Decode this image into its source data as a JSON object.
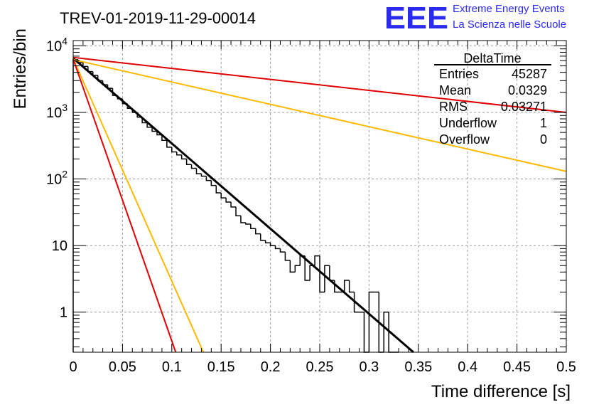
{
  "chart_data": {
    "type": "histogram",
    "title": "TREV-01-2019-11-29-00014",
    "xlabel": "Time difference [s]",
    "ylabel": "Entries/bin",
    "xlim": [
      0,
      0.5
    ],
    "ylim": [
      0.25,
      12000
    ],
    "yscale": "log",
    "grid": true,
    "x_ticks": [
      "0",
      "0.05",
      "0.1",
      "0.15",
      "0.2",
      "0.25",
      "0.3",
      "0.35",
      "0.4",
      "0.45",
      "0.5"
    ],
    "x_tick_values": [
      0,
      0.05,
      0.1,
      0.15,
      0.2,
      0.25,
      0.3,
      0.35,
      0.4,
      0.45,
      0.5
    ],
    "y_ticks": [
      {
        "value": 10000,
        "base": "10",
        "exp": "4"
      },
      {
        "value": 1000,
        "base": "10",
        "exp": "3"
      },
      {
        "value": 100,
        "base": "10",
        "exp": "2"
      },
      {
        "value": 10,
        "base": "10",
        "exp": ""
      },
      {
        "value": 1,
        "base": "1",
        "exp": ""
      }
    ],
    "histogram": {
      "bin_width": 0.005,
      "color": "#000000",
      "counts": [
        6200,
        5600,
        4900,
        4100,
        3600,
        3000,
        2600,
        2300,
        1800,
        1600,
        1350,
        1150,
        1000,
        850,
        700,
        600,
        520,
        460,
        380,
        300,
        255,
        230,
        200,
        165,
        145,
        120,
        110,
        95,
        80,
        62,
        52,
        45,
        38,
        28,
        22,
        21,
        18,
        15,
        12,
        11,
        10,
        9,
        8,
        6,
        4,
        5,
        7,
        3,
        5,
        7,
        2,
        5,
        3,
        2,
        2,
        3,
        2,
        1,
        1,
        0,
        2,
        2,
        0,
        1,
        0,
        0
      ]
    },
    "fit_lines": [
      {
        "color": "#000000",
        "x": [
          0,
          0.345
        ],
        "y": [
          6500,
          0.25
        ]
      },
      {
        "color": "#ffb900",
        "x": [
          0,
          0.5
        ],
        "y": [
          6200,
          130
        ]
      },
      {
        "color": "#e00000",
        "x": [
          0,
          0.5
        ],
        "y": [
          6700,
          1000
        ]
      },
      {
        "color": "#ffb900",
        "x": [
          0,
          0.132
        ],
        "y": [
          6400,
          0.25
        ]
      },
      {
        "color": "#e00000",
        "x": [
          0,
          0.104
        ],
        "y": [
          6300,
          0.25
        ]
      }
    ]
  },
  "stats": {
    "title": "DeltaTime",
    "rows": [
      {
        "label": "Entries",
        "value": "45287"
      },
      {
        "label": "Mean",
        "value": "0.0329"
      },
      {
        "label": "RMS",
        "value": "0.03271"
      },
      {
        "label": "Underflow",
        "value": "1"
      },
      {
        "label": "Overflow",
        "value": "0"
      }
    ]
  },
  "logo": {
    "mark": "EEE",
    "line1": "Extreme Energy Events",
    "line2": "La Scienza nelle Scuole",
    "color": "#2b2bf0"
  }
}
